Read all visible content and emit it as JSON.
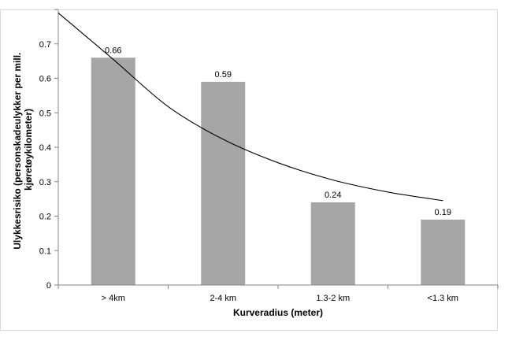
{
  "chart_data": {
    "type": "bar",
    "categories": [
      "> 4km",
      "2-4 km",
      "1.3-2 km",
      "<1.3 km"
    ],
    "values": [
      0.66,
      0.59,
      0.24,
      0.19
    ],
    "data_labels": [
      "0.66",
      "0.59",
      "0.24",
      "0.19"
    ],
    "xlabel": "Kurveradius (meter)",
    "ylabel_lines": [
      "Ulykkesrisiko  (personskadeulykker  per mill.",
      "kjøretøykilometer)"
    ],
    "ylim": [
      0,
      0.8
    ],
    "yticks": [
      0,
      0.1,
      0.2,
      0.3,
      0.4,
      0.5,
      0.6,
      0.7
    ],
    "ytick_labels": [
      "0",
      "0.1",
      "0.2",
      "0.3",
      "0.4",
      "0.5",
      "0.6",
      "0.7"
    ],
    "trendline": {
      "type": "power",
      "x": [
        0.5,
        1,
        1.5,
        2,
        2.5,
        3,
        3.5,
        4
      ],
      "y": [
        0.79,
        0.655,
        0.518,
        0.423,
        0.355,
        0.305,
        0.27,
        0.245
      ]
    },
    "grid": false,
    "legend": "none",
    "colors": {
      "bar": "#a6a6a6",
      "trendline": "#000000",
      "axis": "#868686"
    }
  }
}
